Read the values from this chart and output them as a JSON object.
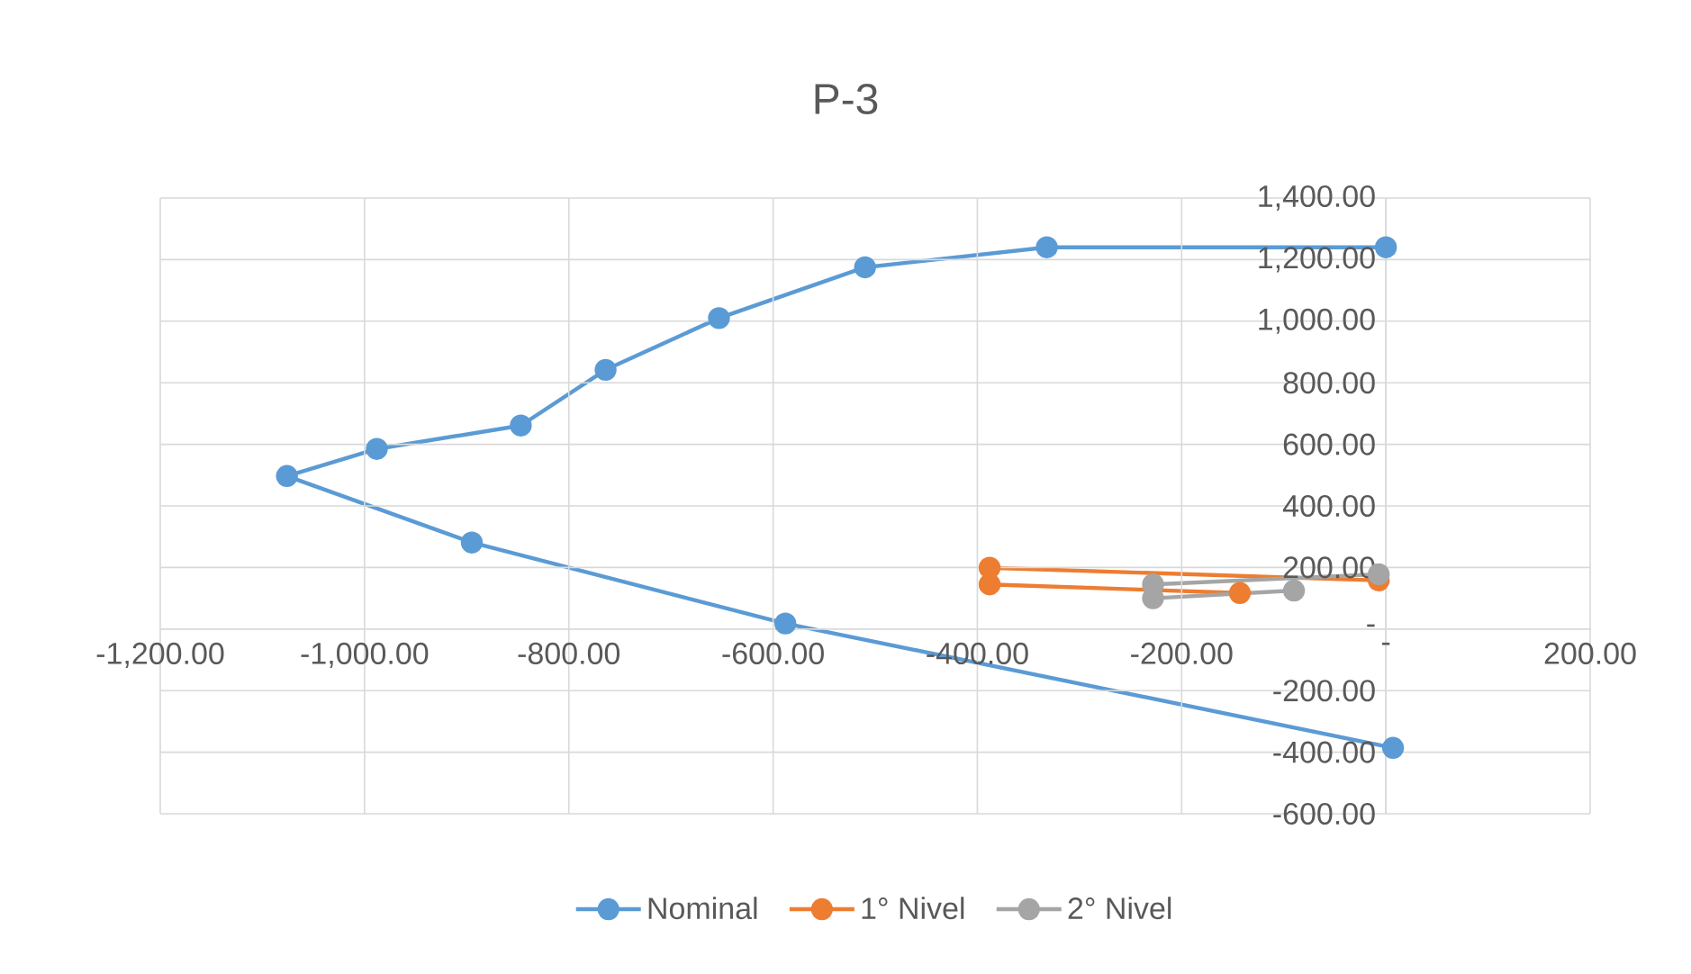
{
  "chart_data": {
    "type": "line",
    "title": "P-3",
    "series": [
      {
        "name": "Nominal",
        "color": "#5b9bd5",
        "x": [
          0,
          -332,
          -510,
          -653,
          -764,
          -847,
          -988,
          -1076,
          -895,
          -588,
          7
        ],
        "values": [
          1240,
          1240,
          1175,
          1010,
          842,
          661,
          585,
          497,
          281,
          18,
          -386
        ]
      },
      {
        "name": "1° Nivel",
        "color": "#ed7d31",
        "x": [
          -143,
          -388,
          -388,
          -7
        ],
        "values": [
          117,
          145,
          199,
          158
        ]
      },
      {
        "name": "2° Nivel",
        "color": "#a5a5a5",
        "x": [
          -90,
          -228,
          -228,
          -7
        ],
        "values": [
          125,
          100,
          145,
          178
        ]
      }
    ],
    "xlim": [
      -1200,
      200
    ],
    "ylim": [
      -600,
      1400
    ],
    "xticks": [
      {
        "value": -1200,
        "label": "-1,200.00"
      },
      {
        "value": -1000,
        "label": "-1,000.00"
      },
      {
        "value": -800,
        "label": "-800.00"
      },
      {
        "value": -600,
        "label": "-600.00"
      },
      {
        "value": -400,
        "label": "-400.00"
      },
      {
        "value": -200,
        "label": "-200.00"
      },
      {
        "value": 0,
        "label": "-"
      },
      {
        "value": 200,
        "label": "200.00"
      }
    ],
    "yticks": [
      {
        "value": -600,
        "label": "-600.00"
      },
      {
        "value": -400,
        "label": "-400.00"
      },
      {
        "value": -200,
        "label": "-200.00"
      },
      {
        "value": 0,
        "label": "-"
      },
      {
        "value": 200,
        "label": "200.00"
      },
      {
        "value": 400,
        "label": "400.00"
      },
      {
        "value": 600,
        "label": "600.00"
      },
      {
        "value": 800,
        "label": "800.00"
      },
      {
        "value": 1000,
        "label": "1,000.00"
      },
      {
        "value": 1200,
        "label": "1,200.00"
      },
      {
        "value": 1400,
        "label": "1,400.00"
      }
    ],
    "grid": true,
    "legend": "bottom",
    "marker": "circle",
    "line_style": "solid"
  }
}
